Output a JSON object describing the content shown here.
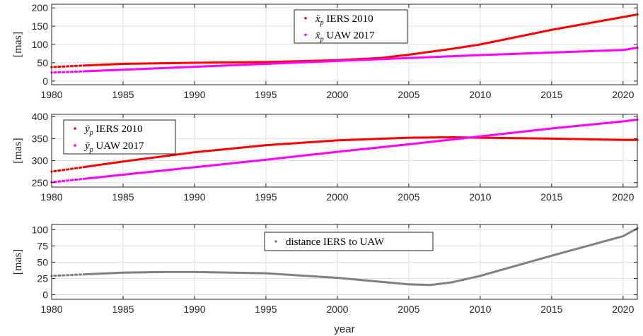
{
  "chart_data": [
    {
      "type": "scatter",
      "ylabel": "[mas]",
      "xlabel": "",
      "xlim": [
        1980,
        2021
      ],
      "ylim": [
        -10,
        210
      ],
      "xticks": [
        1980,
        1985,
        1990,
        1995,
        2000,
        2005,
        2010,
        2015,
        2020
      ],
      "yticks": [
        0,
        50,
        100,
        150,
        200
      ],
      "grid": true,
      "legend_placement": "top-center",
      "series": [
        {
          "name": "x̄p IERS 2010",
          "legend_main": "x̄",
          "legend_sub": "p",
          "legend_rest": " IERS 2010",
          "color": "#ff0000",
          "x": [
            1980,
            1982,
            1985,
            1990,
            1995,
            2000,
            2003,
            2005,
            2008,
            2010,
            2015,
            2020,
            2021
          ],
          "y": [
            38,
            42,
            47,
            50,
            52,
            57,
            63,
            72,
            88,
            100,
            140,
            175,
            182
          ]
        },
        {
          "name": "x̄p UAW 2017",
          "legend_main": "x̄",
          "legend_sub": "p",
          "legend_rest": " UAW 2017",
          "color": "#ff00ff",
          "x": [
            1980,
            1985,
            1990,
            1995,
            2000,
            2005,
            2010,
            2015,
            2020,
            2021
          ],
          "y": [
            23,
            31,
            39,
            47,
            55,
            63,
            71,
            78,
            85,
            91
          ]
        }
      ]
    },
    {
      "type": "scatter",
      "ylabel": "[mas]",
      "xlabel": "",
      "xlim": [
        1980,
        2021
      ],
      "ylim": [
        240,
        405
      ],
      "xticks": [
        1980,
        1985,
        1990,
        1995,
        2000,
        2005,
        2010,
        2015,
        2020
      ],
      "yticks": [
        250,
        300,
        350,
        400
      ],
      "grid": true,
      "legend_placement": "top-left",
      "series": [
        {
          "name": "ȳp IERS 2010",
          "legend_main": "ȳ",
          "legend_sub": "p",
          "legend_rest": " IERS 2010",
          "color": "#ff0000",
          "x": [
            1980,
            1985,
            1990,
            1995,
            2000,
            2005,
            2008,
            2010,
            2015,
            2020,
            2021
          ],
          "y": [
            275,
            298,
            319,
            335,
            346,
            352,
            353,
            352,
            350,
            347,
            347
          ]
        },
        {
          "name": "ȳp UAW 2017",
          "legend_main": "ȳ",
          "legend_sub": "p",
          "legend_rest": " UAW 2017",
          "color": "#ff00ff",
          "x": [
            1980,
            1985,
            1990,
            1995,
            2000,
            2005,
            2010,
            2015,
            2020,
            2021
          ],
          "y": [
            251,
            268,
            285,
            302,
            320,
            337,
            355,
            373,
            389,
            393
          ]
        }
      ]
    },
    {
      "type": "scatter",
      "ylabel": "[mas]",
      "xlabel": "year",
      "xlim": [
        1980,
        2021
      ],
      "ylim": [
        -7,
        108
      ],
      "xticks": [
        1980,
        1985,
        1990,
        1995,
        2000,
        2005,
        2010,
        2015,
        2020
      ],
      "yticks": [
        0,
        25,
        50,
        75,
        100
      ],
      "grid": true,
      "legend_placement": "top-center",
      "series": [
        {
          "name": "distance IERS to UAW",
          "legend_main": "distance IERS to UAW",
          "legend_sub": "",
          "legend_rest": "",
          "color": "#808080",
          "x": [
            1980,
            1983,
            1985,
            1988,
            1990,
            1995,
            2000,
            2003,
            2005,
            2006.5,
            2008,
            2010,
            2015,
            2020,
            2021
          ],
          "y": [
            29,
            32,
            34,
            35,
            35,
            33,
            26,
            20,
            16,
            15,
            19,
            29,
            60,
            90,
            102
          ]
        }
      ]
    }
  ]
}
